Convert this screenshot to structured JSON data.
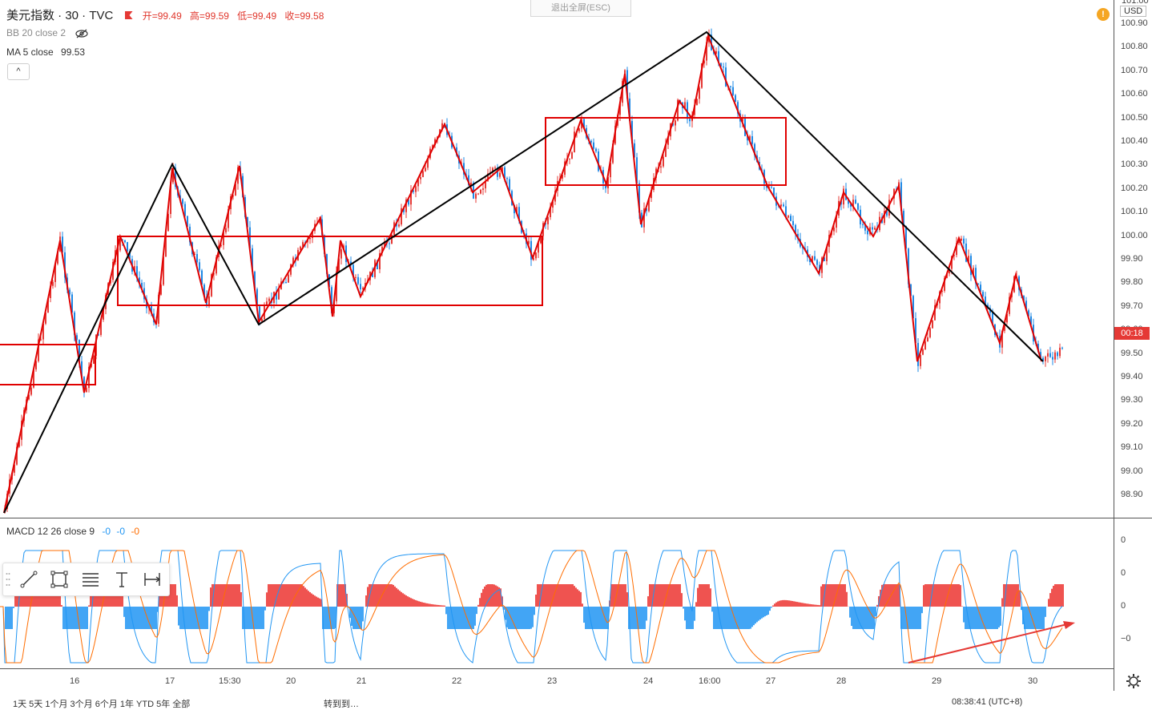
{
  "header": {
    "symbol": "美元指数 · 30 · TVC",
    "ohlc": {
      "open": "开=99.49",
      "high": "高=99.59",
      "low": "低=99.49",
      "close": "收=99.58"
    },
    "bb_indicator": "BB 20 close 2",
    "ma_label": "MA 5 close",
    "ma_value": "99.53",
    "collapse_icon": "^",
    "exit_fullscreen": "退出全屏(ESC)",
    "currency": "USD",
    "alert_icon": "!"
  },
  "price_axis": {
    "top_label": "101.00",
    "ticks": [
      "100.90",
      "100.80",
      "100.70",
      "100.60",
      "100.50",
      "100.40",
      "100.30",
      "100.20",
      "100.10",
      "100.00",
      "99.90",
      "99.80",
      "99.70",
      "99.60",
      "99.50",
      "99.40",
      "99.30",
      "99.20",
      "99.10",
      "99.00",
      "98.90"
    ],
    "current_tag": "00:18"
  },
  "macd": {
    "label": "MACD 12 26 close 9",
    "values": [
      "-0",
      "-0",
      "-0"
    ],
    "axis_ticks": [
      "0",
      "0",
      "0",
      "−0"
    ]
  },
  "time_axis": [
    "16",
    "17",
    "15:30",
    "20",
    "21",
    "22",
    "23",
    "24",
    "16:00",
    "27",
    "28",
    "29",
    "30"
  ],
  "bottom_bar": {
    "left": "1天 5天 1个月 3个月 6个月 1年 YTD 5年 全部",
    "mid": "转到到…",
    "right": "08:38:41 (UTC+8)"
  },
  "toolbar": [
    "trendline-tool",
    "rectangle-tool",
    "fib-tool",
    "text-tool",
    "measure-tool"
  ],
  "colors": {
    "up": "#e53935",
    "down": "#1e88e5",
    "drawing": "#e00000",
    "trend": "#000000",
    "macd_fast": "#2196f3",
    "macd_slow": "#ff6d00"
  }
}
